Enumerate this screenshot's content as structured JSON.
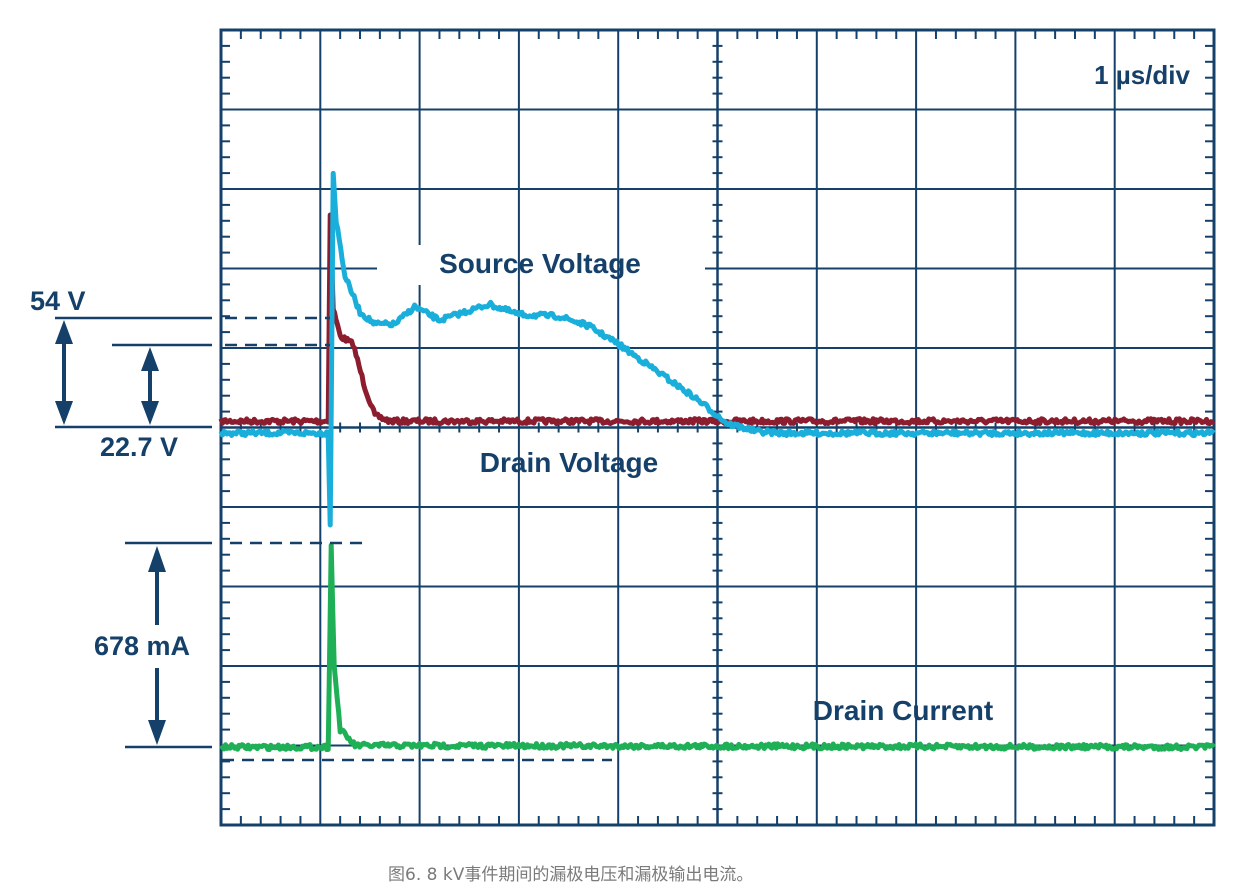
{
  "chart_data": {
    "type": "line",
    "title": "",
    "timebase_label": "1 µs/div",
    "xlim": [
      0,
      10
    ],
    "ylim": [
      0,
      10
    ],
    "grid": true,
    "colors": {
      "grid": "#15406a",
      "source": "#1aaedb",
      "drain_voltage": "#8c1d2e",
      "drain_current": "#1fb057",
      "annotation": "#15406a"
    },
    "series": [
      {
        "name": "Source Voltage",
        "color": "#1aaedb",
        "points": [
          [
            0,
            4.93
          ],
          [
            1.08,
            4.93
          ],
          [
            1.1,
            3.8
          ],
          [
            1.11,
            5.2
          ],
          [
            1.13,
            8.2
          ],
          [
            1.16,
            7.6
          ],
          [
            1.25,
            6.9
          ],
          [
            1.4,
            6.45
          ],
          [
            1.55,
            6.3
          ],
          [
            1.75,
            6.3
          ],
          [
            1.95,
            6.52
          ],
          [
            2.2,
            6.35
          ],
          [
            2.45,
            6.45
          ],
          [
            2.7,
            6.55
          ],
          [
            3.0,
            6.42
          ],
          [
            3.4,
            6.4
          ],
          [
            3.7,
            6.28
          ],
          [
            4.0,
            6.05
          ],
          [
            4.4,
            5.7
          ],
          [
            4.8,
            5.35
          ],
          [
            5.1,
            5.05
          ],
          [
            5.4,
            4.95
          ],
          [
            5.65,
            4.93
          ],
          [
            10,
            4.93
          ]
        ]
      },
      {
        "name": "Drain Voltage",
        "color": "#8c1d2e",
        "points": [
          [
            0,
            5.08
          ],
          [
            1.08,
            5.08
          ],
          [
            1.1,
            7.7
          ],
          [
            1.13,
            6.5
          ],
          [
            1.2,
            6.15
          ],
          [
            1.33,
            6.05
          ],
          [
            1.45,
            5.5
          ],
          [
            1.55,
            5.15
          ],
          [
            1.7,
            5.08
          ],
          [
            10,
            5.08
          ]
        ]
      },
      {
        "name": "Drain Current",
        "color": "#1fb057",
        "points": [
          [
            0,
            0.98
          ],
          [
            1.08,
            0.98
          ],
          [
            1.11,
            3.5
          ],
          [
            1.14,
            2.0
          ],
          [
            1.2,
            1.2
          ],
          [
            1.35,
            1.0
          ],
          [
            10,
            0.98
          ]
        ]
      }
    ],
    "annotations": {
      "source_peak": "54 V",
      "drain_step": "22.7 V",
      "current_peak": "678 mA"
    }
  },
  "caption": "图6. 8 kV事件期间的漏极电压和漏极输出电流。"
}
